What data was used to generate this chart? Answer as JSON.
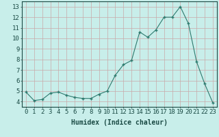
{
  "x": [
    0,
    1,
    2,
    3,
    4,
    5,
    6,
    7,
    8,
    9,
    10,
    11,
    12,
    13,
    14,
    15,
    16,
    17,
    18,
    19,
    20,
    21,
    22,
    23
  ],
  "y": [
    4.9,
    4.1,
    4.2,
    4.8,
    4.9,
    4.6,
    4.4,
    4.3,
    4.3,
    4.7,
    5.0,
    6.5,
    7.5,
    7.9,
    10.6,
    10.1,
    10.8,
    12.0,
    12.0,
    13.0,
    11.4,
    7.8,
    5.7,
    3.9
  ],
  "xlabel": "Humidex (Indice chaleur)",
  "xlim": [
    -0.5,
    23.5
  ],
  "ylim": [
    3.5,
    13.5
  ],
  "yticks": [
    4,
    5,
    6,
    7,
    8,
    9,
    10,
    11,
    12,
    13
  ],
  "xticks": [
    0,
    1,
    2,
    3,
    4,
    5,
    6,
    7,
    8,
    9,
    10,
    11,
    12,
    13,
    14,
    15,
    16,
    17,
    18,
    19,
    20,
    21,
    22,
    23
  ],
  "line_color": "#2d7a6e",
  "marker_color": "#2d7a6e",
  "bg_color": "#c8eeea",
  "grid_color": "#c8a8a8",
  "label_color": "#1a4a44",
  "xlabel_fontsize": 7,
  "tick_fontsize": 6.5
}
